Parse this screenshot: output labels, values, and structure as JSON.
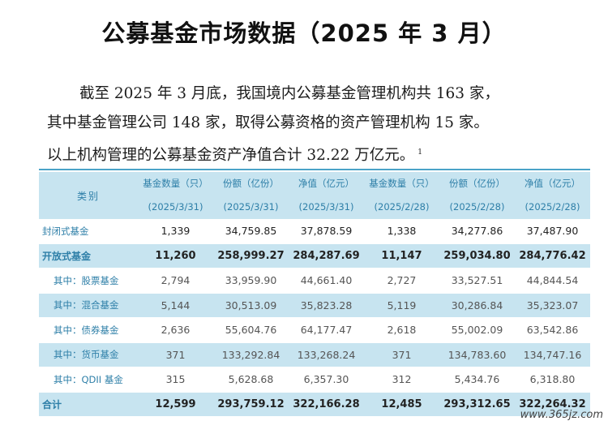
{
  "title": "公募基金市场数据（2025 年 3 月）",
  "paragraph": {
    "line1": "截至 2025 年 3 月底，我国境内公募基金管理机构共 163 家，",
    "line2": "其中基金管理公司 148 家，取得公募资格的资产管理机构 15 家。",
    "line3": "以上机构管理的公募基金资产净值合计 32.22 万亿元。",
    "footnote_mark": "1"
  },
  "table": {
    "category_header": "类别",
    "columns": [
      {
        "name": "基金数量（只）",
        "date": "(2025/3/31)"
      },
      {
        "name": "份额（亿份）",
        "date": "(2025/3/31)"
      },
      {
        "name": "净值（亿元）",
        "date": "(2025/3/31)"
      },
      {
        "name": "基金数量（只）",
        "date": "(2025/2/28)"
      },
      {
        "name": "份额（亿份）",
        "date": "(2025/2/28)"
      },
      {
        "name": "净值（亿元）",
        "date": "(2025/2/28)"
      }
    ],
    "rows": [
      {
        "label": "封闭式基金",
        "values": [
          "1,339",
          "34,759.85",
          "37,878.59",
          "1,338",
          "34,277.86",
          "37,487.90"
        ]
      },
      {
        "label": "开放式基金",
        "values": [
          "11,260",
          "258,999.27",
          "284,287.69",
          "11,147",
          "259,034.80",
          "284,776.42"
        ]
      },
      {
        "label": "其中：股票基金",
        "values": [
          "2,794",
          "33,959.90",
          "44,661.40",
          "2,727",
          "33,527.51",
          "44,844.54"
        ]
      },
      {
        "label": "其中：混合基金",
        "values": [
          "5,144",
          "30,513.09",
          "35,823.28",
          "5,119",
          "30,286.84",
          "35,323.07"
        ]
      },
      {
        "label": "其中：债券基金",
        "values": [
          "2,636",
          "55,604.76",
          "64,177.47",
          "2,618",
          "55,002.09",
          "63,542.86"
        ]
      },
      {
        "label": "其中：货币基金",
        "values": [
          "371",
          "133,292.84",
          "133,268.24",
          "371",
          "134,783.60",
          "134,747.16"
        ]
      },
      {
        "label": "其中：QDII 基金",
        "values": [
          "315",
          "5,628.68",
          "6,357.30",
          "312",
          "5,434.76",
          "6,318.80"
        ]
      },
      {
        "label": "合计",
        "values": [
          "12,599",
          "293,759.12",
          "322,166.28",
          "12,485",
          "293,312.65",
          "322,264.32"
        ]
      }
    ]
  },
  "watermark": "www.365jz.com"
}
